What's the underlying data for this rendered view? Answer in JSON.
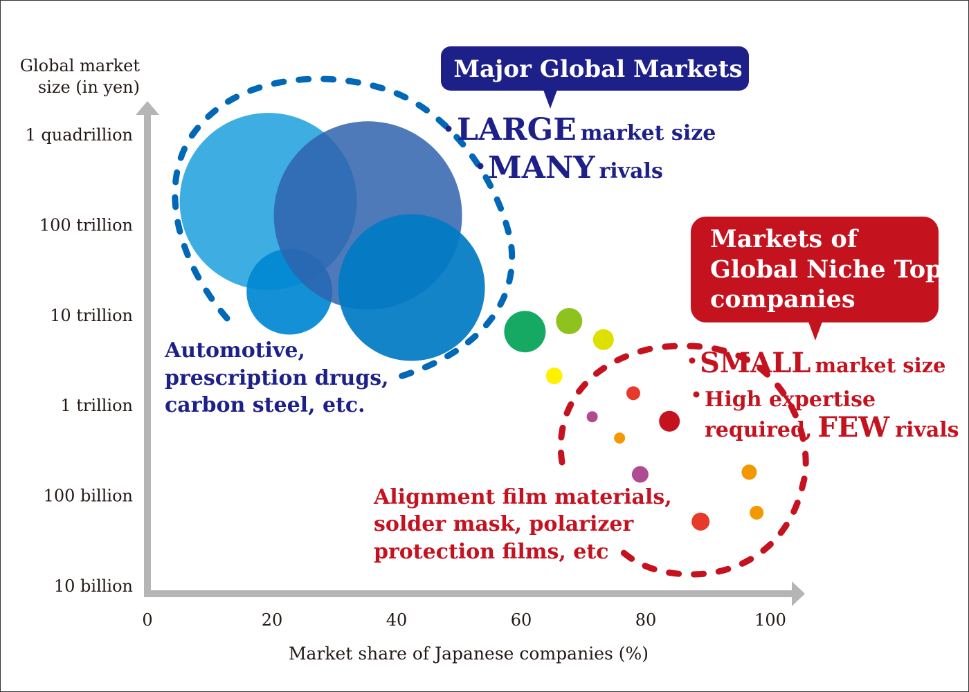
{
  "chart_data": {
    "type": "scatter",
    "variant": "bubble",
    "xlabel": "Market share of Japanese companies (%)",
    "ylabel_lines": [
      "Global market",
      "size (in yen)"
    ],
    "x_ticks": [
      "0",
      "20",
      "40",
      "60",
      "80",
      "100"
    ],
    "xlim": [
      0,
      100
    ],
    "y_scale": "log",
    "y_ticks": [
      "1 quadrillion",
      "100 trillion",
      "10 trillion",
      "1 trillion",
      "100 billion",
      "10 billion"
    ],
    "ylim": [
      10000000000.0,
      1000000000000000.0
    ],
    "grid": false,
    "points": [
      {
        "x": 19.4,
        "y": 180000000000000.0,
        "size": 128,
        "color": "#2ea6df"
      },
      {
        "x": 22.8,
        "y": 18000000000000.0,
        "size": 62,
        "color": "#0088d2"
      },
      {
        "x": 35.4,
        "y": 126000000000000.0,
        "size": 136,
        "color": "#2f63ae"
      },
      {
        "x": 42.4,
        "y": 20000000000000.0,
        "size": 106,
        "color": "#0079c3"
      },
      {
        "x": 60.6,
        "y": 6500000000000.0,
        "size": 30,
        "color": "#16a964"
      },
      {
        "x": 67.7,
        "y": 8500000000000.0,
        "size": 19,
        "color": "#8dc21f"
      },
      {
        "x": 73.2,
        "y": 5300000000000.0,
        "size": 15,
        "color": "#dde000"
      },
      {
        "x": 65.3,
        "y": 2100000000000.0,
        "size": 12,
        "color": "#fff100"
      },
      {
        "x": 78.0,
        "y": 1350000000000.0,
        "size": 10,
        "color": "#e63a2b"
      },
      {
        "x": 83.8,
        "y": 660000000000.0,
        "size": 15,
        "color": "#c4121f"
      },
      {
        "x": 71.4,
        "y": 740000000000.0,
        "size": 8,
        "color": "#b04a91"
      },
      {
        "x": 75.8,
        "y": 430000000000.0,
        "size": 8,
        "color": "#f39800"
      },
      {
        "x": 79.1,
        "y": 170000000000.0,
        "size": 12,
        "color": "#b04a91"
      },
      {
        "x": 96.6,
        "y": 180000000000.0,
        "size": 11,
        "color": "#f39800"
      },
      {
        "x": 97.8,
        "y": 64000000000.0,
        "size": 10,
        "color": "#f39800"
      },
      {
        "x": 88.8,
        "y": 51000000000.0,
        "size": 13,
        "color": "#e63a2b"
      }
    ],
    "annotations": {
      "major_box": "Major Global Markets",
      "major_large_word": "LARGE",
      "major_large_rest": "market size",
      "major_many_word": "MANY",
      "major_many_rest": "rivals",
      "major_examples": [
        "Automotive,",
        "prescription drugs,",
        "carbon steel, etc."
      ],
      "niche_box": [
        "Markets of",
        "Global Niche Top",
        "companies"
      ],
      "niche_small_word": "SMALL",
      "niche_small_rest": "market size",
      "niche_expertise_1": "High expertise",
      "niche_expertise_2a": "required,",
      "niche_expertise_few": "FEW",
      "niche_expertise_2b": "rivals",
      "niche_examples": [
        "Alignment film materials,",
        "solder mask, polarizer",
        "protection films, etc"
      ]
    },
    "colors": {
      "major": "#1d2088",
      "niche": "#c4121f",
      "axis": "#b5b5b5",
      "major_dash": "#0068b7"
    }
  }
}
